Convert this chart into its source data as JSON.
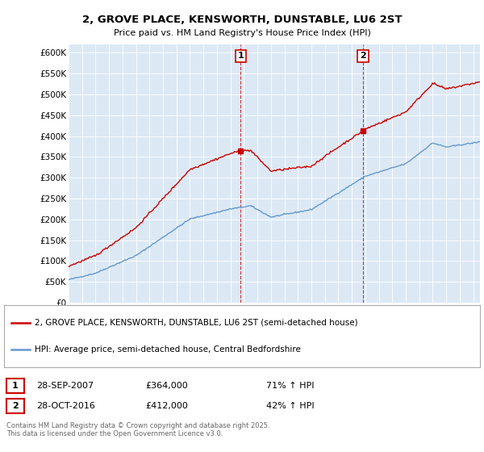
{
  "title": "2, GROVE PLACE, KENSWORTH, DUNSTABLE, LU6 2ST",
  "subtitle": "Price paid vs. HM Land Registry's House Price Index (HPI)",
  "legend_line1": "2, GROVE PLACE, KENSWORTH, DUNSTABLE, LU6 2ST (semi-detached house)",
  "legend_line2": "HPI: Average price, semi-detached house, Central Bedfordshire",
  "annotation1_date": "28-SEP-2007",
  "annotation1_price": "£364,000",
  "annotation1_hpi": "71% ↑ HPI",
  "annotation2_date": "28-OCT-2016",
  "annotation2_price": "£412,000",
  "annotation2_hpi": "42% ↑ HPI",
  "footer": "Contains HM Land Registry data © Crown copyright and database right 2025.\nThis data is licensed under the Open Government Licence v3.0.",
  "background_color": "#dce9f5",
  "line_color_red": "#cc0000",
  "line_color_blue": "#6699cc",
  "ylim": [
    0,
    620000
  ],
  "yticks": [
    0,
    50000,
    100000,
    150000,
    200000,
    250000,
    300000,
    350000,
    400000,
    450000,
    500000,
    550000,
    600000
  ],
  "ytick_labels": [
    "£0",
    "£50K",
    "£100K",
    "£150K",
    "£200K",
    "£250K",
    "£300K",
    "£350K",
    "£400K",
    "£450K",
    "£500K",
    "£550K",
    "£600K"
  ],
  "sale1_x": 2007.75,
  "sale1_y": 364000,
  "sale2_x": 2016.83,
  "sale2_y": 412000,
  "xmin": 1995,
  "xmax": 2025.5
}
